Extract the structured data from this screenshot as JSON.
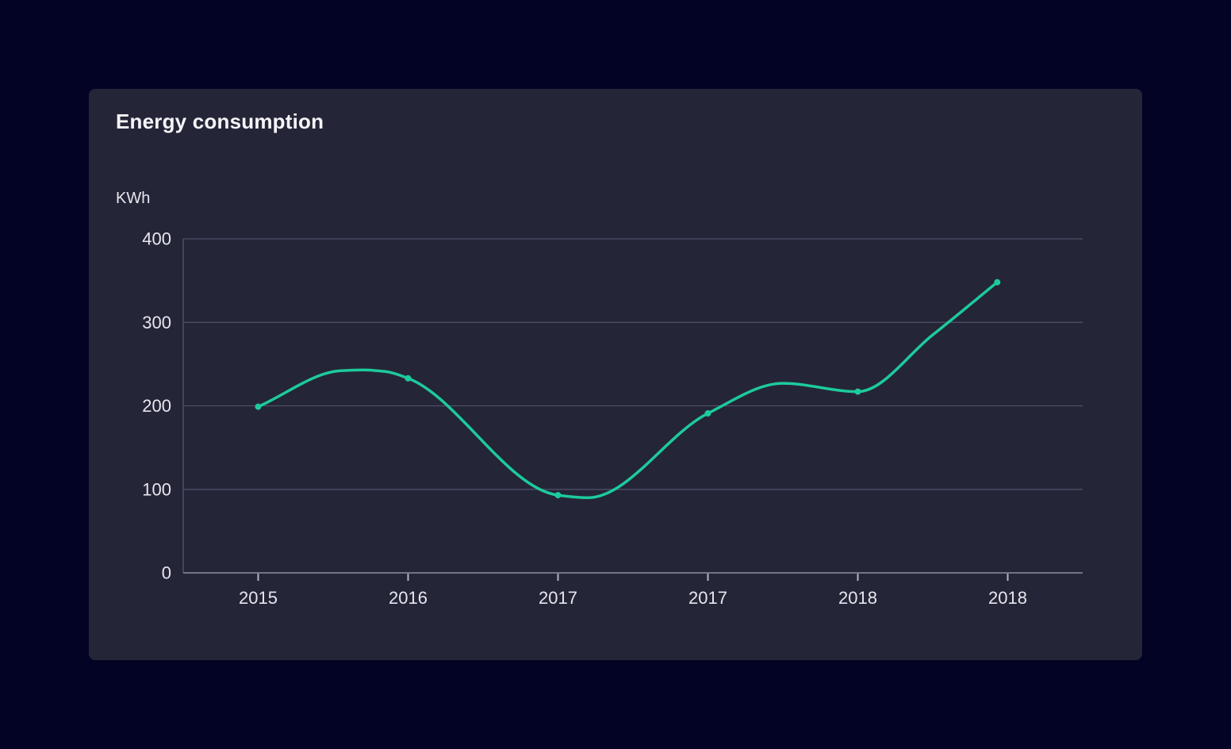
{
  "page": {
    "background": "#030325"
  },
  "card": {
    "title": "Energy consumption",
    "background": "#252538"
  },
  "chart_data": {
    "type": "line",
    "title": "Energy consumption",
    "ylabel": "KWh",
    "xlabel": "",
    "x_tick_labels": [
      "2015",
      "2016",
      "2017",
      "2017",
      "2018",
      "2018"
    ],
    "y_ticks": [
      0,
      100,
      200,
      300,
      400
    ],
    "ylim": [
      0,
      400
    ],
    "grid": true,
    "legend": false,
    "series": [
      {
        "name": "Energy consumption",
        "color": "#1CCB9C",
        "x_positions": [
          0,
          1,
          2,
          3,
          4,
          4.93
        ],
        "values": [
          199,
          233,
          93,
          191,
          217,
          348
        ]
      }
    ],
    "curve_render_points": {
      "x_positions": [
        0,
        0.55,
        0.7,
        0.85,
        1,
        2,
        2.2,
        3,
        3.5,
        4,
        4.5,
        4.93
      ],
      "values": [
        199,
        242,
        243,
        241,
        233,
        93,
        90,
        191,
        227,
        217,
        285,
        348
      ]
    },
    "colors": {
      "line": "#1CCB9C",
      "gridline": "#4E4E68",
      "axis_line": "#8E8EA4",
      "tick_mark": "#B4B4C4",
      "tick_label": "#E6E6EF",
      "title": "#F5F5F8"
    }
  }
}
